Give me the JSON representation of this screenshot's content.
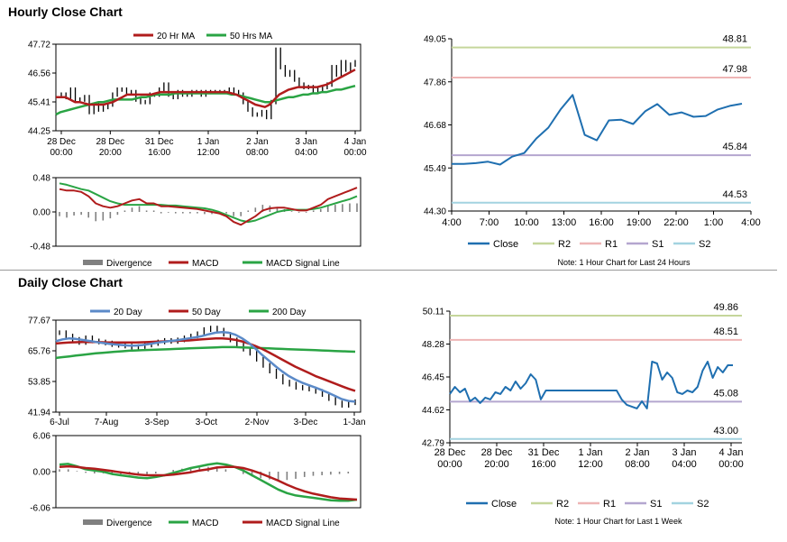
{
  "sections": {
    "hourly_title": "Hourly Close Chart",
    "daily_title": "Daily Close Chart"
  },
  "colors": {
    "ma20_hourly": "#b01c1c",
    "ma50_hourly": "#2aa444",
    "close_blue": "#1f6fb0",
    "ma20_daily": "#5b8ac8",
    "ma50_daily": "#b01c1c",
    "ma200_daily": "#2aa444",
    "divergence": "#808080",
    "r2": "#c5d69b",
    "r1": "#eeb5b5",
    "s1": "#b4a6cf",
    "s2": "#a3d3e0",
    "candle": "#000000"
  },
  "chart_data": [
    {
      "id": "hourly-price",
      "type": "line",
      "title": "",
      "legend": [
        "20 Hr MA",
        "50 Hrs MA"
      ],
      "yticks": [
        "47.72",
        "46.56",
        "45.41",
        "44.25"
      ],
      "ylim": [
        44.25,
        47.72
      ],
      "xticks": [
        [
          "28 Dec",
          "00:00"
        ],
        [
          "28 Dec",
          "20:00"
        ],
        [
          "31 Dec",
          "16:00"
        ],
        [
          "1 Jan",
          "12:00"
        ],
        [
          "2 Jan",
          "08:00"
        ],
        [
          "3 Jan",
          "04:00"
        ],
        [
          "4 Jan",
          "00:00"
        ]
      ],
      "series": [
        {
          "name": "Close",
          "values": [
            45.7,
            45.6,
            45.9,
            45.5,
            45.5,
            45.6,
            45.0,
            45.3,
            45.1,
            45.2,
            45.3,
            45.7,
            45.9,
            45.9,
            45.8,
            45.8,
            45.5,
            45.4,
            45.4,
            45.7,
            45.7,
            45.9,
            46.1,
            45.7,
            45.6,
            45.8,
            45.7,
            45.7,
            45.8,
            45.8,
            45.7,
            45.8,
            45.8,
            45.8,
            45.8,
            45.8,
            45.9,
            45.8,
            45.7,
            45.4,
            45.1,
            44.9,
            44.9,
            45.0,
            44.8,
            45.4,
            47.5,
            46.8,
            46.5,
            46.6,
            46.3,
            46.1,
            46.0,
            46.0,
            45.8,
            45.9,
            46.0,
            46.1,
            46.8,
            46.5,
            47.0,
            46.7,
            46.9,
            47.0
          ]
        },
        {
          "name": "20 Hr MA",
          "values": [
            45.6,
            45.6,
            45.6,
            45.5,
            45.4,
            45.4,
            45.35,
            45.3,
            45.3,
            45.3,
            45.3,
            45.35,
            45.4,
            45.5,
            45.6,
            45.7,
            45.7,
            45.7,
            45.7,
            45.7,
            45.7,
            45.75,
            45.8,
            45.8,
            45.8,
            45.8,
            45.8,
            45.8,
            45.8,
            45.8,
            45.8,
            45.8,
            45.8,
            45.8,
            45.8,
            45.8,
            45.8,
            45.75,
            45.7,
            45.6,
            45.5,
            45.4,
            45.3,
            45.25,
            45.2,
            45.3,
            45.5,
            45.7,
            45.8,
            45.9,
            45.95,
            46.0,
            46.0,
            46.0,
            46.0,
            46.0,
            46.05,
            46.1,
            46.2,
            46.3,
            46.4,
            46.5,
            46.6,
            46.7
          ]
        },
        {
          "name": "50 Hrs MA",
          "values": [
            44.9,
            45.0,
            45.05,
            45.1,
            45.15,
            45.2,
            45.25,
            45.3,
            45.35,
            45.4,
            45.4,
            45.45,
            45.5,
            45.5,
            45.5,
            45.5,
            45.5,
            45.55,
            45.6,
            45.6,
            45.65,
            45.7,
            45.7,
            45.7,
            45.7,
            45.75,
            45.75,
            45.75,
            45.75,
            45.75,
            45.75,
            45.75,
            45.75,
            45.75,
            45.75,
            45.75,
            45.75,
            45.7,
            45.7,
            45.65,
            45.6,
            45.55,
            45.5,
            45.45,
            45.4,
            45.4,
            45.45,
            45.5,
            45.55,
            45.6,
            45.6,
            45.65,
            45.7,
            45.7,
            45.75,
            45.75,
            45.8,
            45.8,
            45.85,
            45.9,
            45.9,
            45.95,
            46.0,
            46.05
          ]
        }
      ]
    },
    {
      "id": "hourly-macd",
      "type": "line",
      "legend": [
        "Divergence",
        "MACD",
        "MACD Signal Line"
      ],
      "yticks": [
        "0.48",
        "0.00",
        "-0.48"
      ],
      "ylim": [
        -0.48,
        0.48
      ],
      "series": [
        {
          "name": "MACD",
          "values": [
            0.32,
            0.3,
            0.3,
            0.28,
            0.22,
            0.12,
            0.08,
            0.06,
            0.08,
            0.12,
            0.16,
            0.18,
            0.12,
            0.12,
            0.08,
            0.08,
            0.07,
            0.06,
            0.05,
            0.04,
            0.02,
            0.0,
            -0.02,
            -0.06,
            -0.14,
            -0.18,
            -0.12,
            -0.06,
            0.02,
            0.05,
            0.06,
            0.06,
            0.04,
            0.02,
            0.02,
            0.06,
            0.1,
            0.18,
            0.22,
            0.26,
            0.3,
            0.34
          ]
        },
        {
          "name": "MACD Signal Line",
          "values": [
            0.4,
            0.38,
            0.35,
            0.32,
            0.3,
            0.25,
            0.2,
            0.15,
            0.12,
            0.1,
            0.1,
            0.1,
            0.1,
            0.1,
            0.1,
            0.09,
            0.09,
            0.08,
            0.07,
            0.06,
            0.05,
            0.03,
            0.0,
            -0.04,
            -0.08,
            -0.12,
            -0.14,
            -0.12,
            -0.08,
            -0.04,
            0.0,
            0.02,
            0.03,
            0.03,
            0.03,
            0.04,
            0.06,
            0.09,
            0.12,
            0.15,
            0.18,
            0.22
          ]
        },
        {
          "name": "Divergence",
          "values": [
            -0.06,
            -0.08,
            -0.05,
            -0.04,
            -0.08,
            -0.13,
            -0.12,
            -0.09,
            -0.04,
            0.02,
            0.06,
            0.08,
            0.02,
            0.02,
            -0.02,
            -0.01,
            -0.02,
            -0.02,
            -0.02,
            -0.02,
            -0.03,
            -0.03,
            -0.02,
            -0.02,
            -0.06,
            -0.06,
            0.02,
            0.06,
            0.1,
            0.09,
            0.06,
            0.04,
            0.01,
            -0.01,
            -0.01,
            0.02,
            0.04,
            0.09,
            0.1,
            0.11,
            0.12,
            0.12
          ]
        }
      ]
    },
    {
      "id": "hourly-pivot",
      "type": "line",
      "legend": [
        "Close",
        "R2",
        "R1",
        "S1",
        "S2"
      ],
      "note": "Note: 1 Hour Chart for Last 24 Hours",
      "yticks": [
        "49.05",
        "47.86",
        "46.68",
        "45.49",
        "44.30"
      ],
      "ylim": [
        44.3,
        49.05
      ],
      "xticks": [
        "4:00",
        "7:00",
        "10:00",
        "13:00",
        "16:00",
        "19:00",
        "22:00",
        "1:00",
        "4:00"
      ],
      "levels": {
        "R2": "48.81",
        "R1": "47.98",
        "S1": "45.84",
        "S2": "44.53"
      },
      "series": [
        {
          "name": "Close",
          "values": [
            45.6,
            45.6,
            45.62,
            45.66,
            45.58,
            45.8,
            45.9,
            46.3,
            46.6,
            47.1,
            47.5,
            46.4,
            46.25,
            46.8,
            46.82,
            46.7,
            47.05,
            47.25,
            46.95,
            47.02,
            46.9,
            46.92,
            47.1,
            47.2,
            47.26
          ]
        }
      ]
    },
    {
      "id": "daily-price",
      "type": "line",
      "legend": [
        "20 Day",
        "50 Day",
        "200 Day"
      ],
      "yticks": [
        "77.67",
        "65.76",
        "53.85",
        "41.94"
      ],
      "ylim": [
        41.94,
        77.67
      ],
      "xticks": [
        "6-Jul",
        "7-Aug",
        "3-Sep",
        "3-Oct",
        "2-Nov",
        "3-Dec",
        "1-Jan"
      ],
      "series": [
        {
          "name": "Close",
          "values": [
            72.8,
            71.5,
            70.2,
            69.0,
            70.8,
            69.6,
            69.2,
            68.8,
            68.2,
            67.9,
            67.6,
            67.2,
            67.4,
            68.0,
            68.6,
            69.2,
            69.8,
            69.4,
            70.0,
            70.8,
            71.5,
            72.4,
            74.0,
            74.6,
            73.8,
            72.2,
            70.0,
            68.2,
            66.4,
            64.8,
            62.5,
            60.1,
            57.9,
            55.8,
            53.6,
            52.8,
            51.6,
            51.3,
            50.9,
            50.0,
            48.8,
            47.2,
            45.5,
            44.6,
            45.6,
            46.0
          ]
        },
        {
          "name": "20 Day",
          "values": [
            69.5,
            70.2,
            70.6,
            70.4,
            70.0,
            69.6,
            69.2,
            68.8,
            68.5,
            68.2,
            68.0,
            67.8,
            67.8,
            68.0,
            68.4,
            68.8,
            69.2,
            69.5,
            69.8,
            70.2,
            70.6,
            71.0,
            71.5,
            72.2,
            72.8,
            73.0,
            72.8,
            72.0,
            70.6,
            68.8,
            66.6,
            64.2,
            62.0,
            59.8,
            57.8,
            56.0,
            54.6,
            53.4,
            52.4,
            51.5,
            50.5,
            49.4,
            48.2,
            47.0,
            46.3,
            46.0
          ]
        },
        {
          "name": "50 Day",
          "values": [
            68.6,
            68.8,
            69.0,
            69.1,
            69.2,
            69.2,
            69.2,
            69.1,
            69.0,
            69.0,
            69.0,
            69.0,
            69.0,
            69.1,
            69.2,
            69.3,
            69.4,
            69.5,
            69.6,
            69.7,
            69.8,
            70.0,
            70.2,
            70.4,
            70.6,
            70.6,
            70.4,
            70.0,
            69.4,
            68.6,
            67.6,
            66.5,
            65.2,
            63.8,
            62.4,
            61.0,
            59.6,
            58.4,
            57.2,
            56.0,
            55.0,
            54.0,
            53.0,
            52.0,
            51.0,
            50.2
          ]
        },
        {
          "name": "200 Day",
          "values": [
            63.0,
            63.3,
            63.6,
            63.9,
            64.2,
            64.5,
            64.8,
            65.0,
            65.2,
            65.4,
            65.6,
            65.8,
            65.9,
            66.0,
            66.1,
            66.2,
            66.3,
            66.4,
            66.5,
            66.6,
            66.7,
            66.8,
            66.9,
            67.0,
            67.1,
            67.2,
            67.2,
            67.2,
            67.1,
            67.0,
            66.9,
            66.8,
            66.7,
            66.6,
            66.5,
            66.4,
            66.3,
            66.2,
            66.1,
            66.0,
            65.9,
            65.8,
            65.7,
            65.6,
            65.5,
            65.4
          ]
        }
      ]
    },
    {
      "id": "daily-macd",
      "type": "line",
      "legend": [
        "Divergence",
        "MACD",
        "MACD Signal Line"
      ],
      "yticks": [
        "6.06",
        "0.00",
        "-6.06"
      ],
      "ylim": [
        -6.06,
        6.06
      ],
      "series": [
        {
          "name": "MACD",
          "values": [
            1.2,
            1.3,
            0.9,
            0.4,
            0.2,
            0.0,
            -0.4,
            -0.6,
            -0.8,
            -1.0,
            -1.1,
            -0.9,
            -0.6,
            -0.2,
            0.2,
            0.6,
            0.9,
            1.2,
            1.4,
            1.2,
            0.8,
            0.2,
            -0.6,
            -1.4,
            -2.2,
            -3.0,
            -3.6,
            -4.0,
            -4.2,
            -4.4,
            -4.6,
            -4.8,
            -4.9,
            -4.9,
            -4.7
          ]
        },
        {
          "name": "MACD Signal Line",
          "values": [
            0.8,
            0.9,
            0.8,
            0.6,
            0.5,
            0.3,
            0.1,
            -0.1,
            -0.3,
            -0.5,
            -0.6,
            -0.6,
            -0.6,
            -0.5,
            -0.3,
            -0.1,
            0.2,
            0.4,
            0.7,
            0.8,
            0.8,
            0.6,
            0.2,
            -0.3,
            -0.9,
            -1.5,
            -2.2,
            -2.8,
            -3.3,
            -3.7,
            -4.0,
            -4.3,
            -4.5,
            -4.6,
            -4.7
          ]
        },
        {
          "name": "Divergence",
          "values": [
            0.4,
            0.4,
            0.1,
            -0.2,
            -0.3,
            -0.3,
            -0.5,
            -0.5,
            -0.5,
            -0.5,
            -0.5,
            -0.3,
            0.0,
            0.3,
            0.5,
            0.7,
            0.7,
            0.8,
            0.7,
            0.4,
            0.0,
            -0.4,
            -0.8,
            -1.1,
            -1.3,
            -1.5,
            -1.4,
            -1.2,
            -0.9,
            -0.7,
            -0.6,
            -0.5,
            -0.4,
            -0.3,
            0.0
          ]
        }
      ]
    },
    {
      "id": "daily-pivot",
      "type": "line",
      "legend": [
        "Close",
        "R2",
        "R1",
        "S1",
        "S2"
      ],
      "note": "Note: 1 Hour Chart for Last 1 Week",
      "yticks": [
        "50.11",
        "48.28",
        "46.45",
        "44.62",
        "42.79"
      ],
      "ylim": [
        42.79,
        50.11
      ],
      "xticks": [
        [
          "28 Dec",
          "00:00"
        ],
        [
          "28 Dec",
          "20:00"
        ],
        [
          "31 Dec",
          "16:00"
        ],
        [
          "1 Jan",
          "12:00"
        ],
        [
          "2 Jan",
          "08:00"
        ],
        [
          "3 Jan",
          "04:00"
        ],
        [
          "4 Jan",
          "00:00"
        ]
      ],
      "levels": {
        "R2": "49.86",
        "R1": "48.51",
        "S1": "45.08",
        "S2": "43.00"
      },
      "series": [
        {
          "name": "Close",
          "values": [
            45.5,
            45.9,
            45.6,
            45.8,
            45.1,
            45.3,
            45.0,
            45.3,
            45.2,
            45.6,
            45.5,
            45.9,
            45.7,
            46.2,
            45.8,
            46.1,
            46.6,
            46.3,
            45.2,
            45.7,
            45.7,
            45.7,
            45.7,
            45.7,
            45.7,
            45.7,
            45.7,
            45.7,
            45.7,
            45.7,
            45.7,
            45.7,
            45.7,
            45.7,
            45.2,
            44.9,
            44.8,
            44.7,
            45.1,
            44.7,
            47.3,
            47.2,
            46.3,
            46.7,
            46.4,
            45.6,
            45.5,
            45.7,
            45.6,
            45.9,
            46.8,
            47.3,
            46.4,
            47.0,
            46.7,
            47.1,
            47.1
          ]
        }
      ]
    }
  ]
}
